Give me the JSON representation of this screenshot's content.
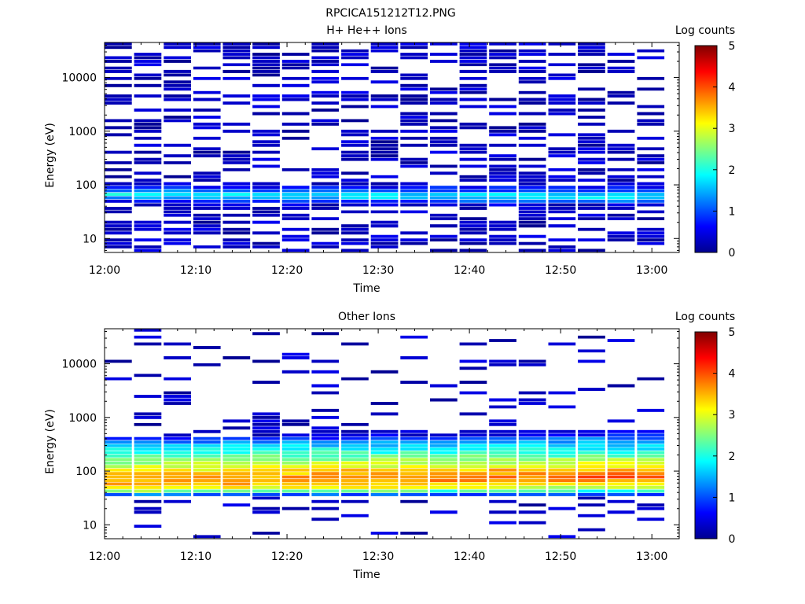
{
  "figure_title": "RPCICA151212T12.PNG",
  "colors": {
    "colormap": [
      "#00008f",
      "#0000ff",
      "#0080ff",
      "#00ffff",
      "#80ff80",
      "#ffff00",
      "#ff8000",
      "#ff0000",
      "#800000"
    ]
  },
  "chart_data": [
    {
      "type": "heatmap",
      "title": "H+ He++ Ions",
      "xlabel": "Time",
      "ylabel": "Energy (eV)",
      "x_ticks": [
        "12:00",
        "12:10",
        "12:20",
        "12:30",
        "12:40",
        "12:50",
        "13:00"
      ],
      "x_range_minutes": [
        0,
        63
      ],
      "y_scale": "log",
      "y_ticks": [
        "10",
        "100",
        "1000",
        "10000"
      ],
      "y_range": [
        5.5,
        45000
      ],
      "colorbar": {
        "label": "Log counts",
        "ticks": [
          "0",
          "1",
          "2",
          "3",
          "4",
          "5"
        ],
        "range": [
          0,
          5
        ]
      },
      "n_time_bins": 19,
      "energy_rows_desc": [
        42000,
        36000,
        31000,
        27000,
        23000,
        20000,
        17000,
        15000,
        12800,
        11000,
        9500,
        8200,
        7000,
        6000,
        5200,
        4500,
        3850,
        3300,
        2850,
        2450,
        2100,
        1800,
        1560,
        1340,
        1150,
        990,
        850,
        730,
        630,
        540,
        465,
        400,
        345,
        295,
        255,
        220,
        190,
        163,
        140,
        121,
        104,
        89,
        77,
        66,
        57,
        49,
        42,
        36,
        31,
        27,
        23,
        20,
        17,
        14.6,
        12.6,
        10.8,
        9.3,
        8,
        6.9,
        6
      ],
      "profile": [
        [
          0,
          0,
          0,
          0,
          0,
          0,
          0,
          0,
          0,
          0,
          0,
          0,
          0,
          0,
          0,
          0,
          0,
          0,
          0,
          0,
          0,
          0,
          0,
          0,
          0,
          0,
          0,
          0,
          0,
          0,
          0,
          0,
          0,
          0,
          0,
          0,
          0,
          0,
          0,
          0,
          0.3,
          0.7,
          1.2,
          1.8,
          1.4,
          0.6,
          0.3,
          0.2,
          0,
          0,
          0,
          0,
          0,
          0,
          0,
          0,
          0,
          0,
          0,
          0
        ],
        [
          0,
          0,
          0,
          0,
          0,
          0,
          0,
          0,
          0,
          0,
          0,
          0,
          0,
          0,
          0,
          0,
          0,
          0,
          0,
          0,
          0,
          0,
          0,
          0,
          0,
          0,
          0,
          0,
          0,
          0,
          0,
          0,
          0,
          0,
          0,
          0,
          0,
          0,
          0,
          0,
          0,
          0.6,
          1,
          1.6,
          1.8,
          1.2,
          0.4,
          0,
          0,
          0,
          0,
          0,
          0,
          0,
          0,
          0,
          0,
          0,
          0,
          0
        ]
      ],
      "density": 0.5,
      "seed": 11
    },
    {
      "type": "heatmap",
      "title": "Other Ions",
      "xlabel": "Time",
      "ylabel": "Energy (eV)",
      "x_ticks": [
        "12:00",
        "12:10",
        "12:20",
        "12:30",
        "12:40",
        "12:50",
        "13:00"
      ],
      "x_range_minutes": [
        0,
        63
      ],
      "y_scale": "log",
      "y_ticks": [
        "10",
        "100",
        "1000",
        "10000"
      ],
      "y_range": [
        5.5,
        45000
      ],
      "colorbar": {
        "label": "Log counts",
        "ticks": [
          "0",
          "1",
          "2",
          "3",
          "4",
          "5"
        ],
        "range": [
          0,
          5
        ]
      },
      "n_time_bins": 19,
      "energy_rows_desc": [
        42000,
        36000,
        31000,
        27000,
        23000,
        20000,
        17000,
        15000,
        12800,
        11000,
        9500,
        8200,
        7000,
        6000,
        5200,
        4500,
        3850,
        3300,
        2850,
        2450,
        2100,
        1800,
        1560,
        1340,
        1150,
        990,
        850,
        730,
        630,
        540,
        465,
        400,
        345,
        295,
        255,
        220,
        190,
        163,
        140,
        121,
        104,
        89,
        77,
        66,
        57,
        49,
        42,
        36,
        31,
        27,
        23,
        20,
        17,
        14.6,
        12.6,
        10.8,
        9.3,
        8,
        6.9,
        6
      ],
      "profile": [
        [
          0,
          0,
          0,
          0,
          0,
          0,
          0,
          0,
          0,
          0,
          0,
          0,
          0,
          0,
          0,
          0,
          0,
          0,
          0,
          0,
          0,
          0,
          0,
          0,
          0,
          0,
          0,
          0,
          0,
          0,
          0,
          0.6,
          1.2,
          1.6,
          1.9,
          2.1,
          2.3,
          2.5,
          2.7,
          2.9,
          3.1,
          3.3,
          3.5,
          3.6,
          3.5,
          3.2,
          2.6,
          1.2,
          0,
          0,
          0,
          0,
          0,
          0,
          0,
          0,
          0,
          0,
          0,
          0
        ],
        [
          0,
          0,
          0,
          0,
          0,
          0,
          0,
          0,
          0,
          0,
          0,
          0,
          0,
          0,
          0,
          0,
          0,
          0,
          0,
          0,
          0,
          0,
          0,
          0,
          0,
          0,
          0,
          0,
          0,
          0.4,
          0.8,
          1.2,
          1.5,
          1.7,
          1.9,
          2.1,
          2.3,
          2.6,
          2.9,
          3.2,
          3.6,
          3.8,
          3.9,
          3.7,
          3.3,
          2.8,
          2,
          0.9,
          0,
          0,
          0,
          0,
          0,
          0,
          0,
          0,
          0,
          0,
          0,
          0
        ]
      ],
      "density": 0.15,
      "seed": 27
    }
  ]
}
